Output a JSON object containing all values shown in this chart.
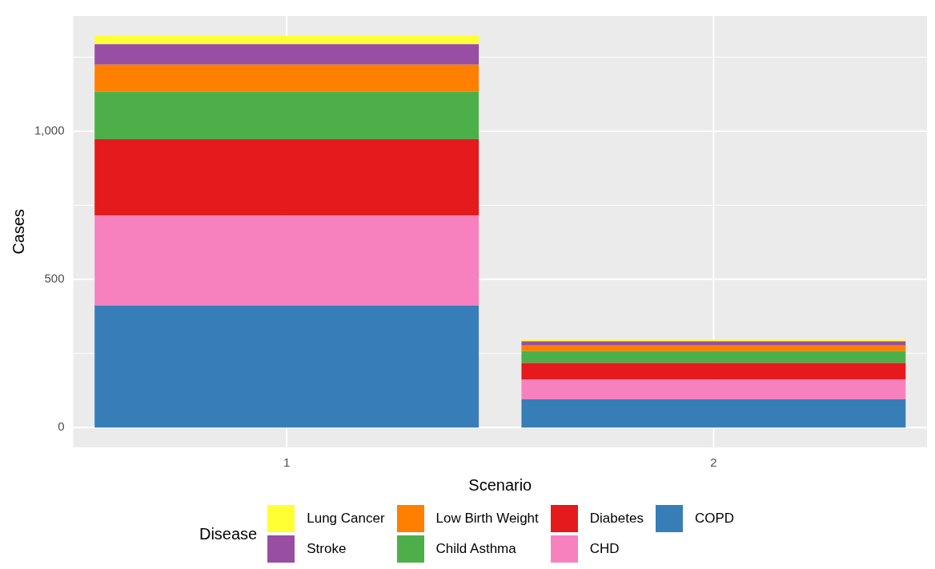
{
  "chart_data": {
    "type": "bar",
    "stacked": true,
    "xlabel": "Scenario",
    "ylabel": "Cases",
    "legend_title": "Disease",
    "legend": "bottom",
    "grid": true,
    "categories": [
      "1",
      "2"
    ],
    "ylim": [
      -67,
      1389
    ],
    "yticks": [
      0,
      {
        "value": 250,
        "label": null
      },
      {
        "value": 500,
        "label": "500"
      },
      {
        "value": 750,
        "label": null
      },
      {
        "value": 1000,
        "label": "1,000"
      },
      {
        "value": 1250,
        "label": null
      }
    ],
    "series": [
      {
        "name": "COPD",
        "color": "#377eb8",
        "values": [
          412,
          95
        ]
      },
      {
        "name": "CHD",
        "color": "#f781bf",
        "values": [
          303,
          66
        ]
      },
      {
        "name": "Diabetes",
        "color": "#e41a1c",
        "values": [
          258,
          57
        ]
      },
      {
        "name": "Child Asthma",
        "color": "#4daf4a",
        "values": [
          160,
          40
        ]
      },
      {
        "name": "Low Birth Weight",
        "color": "#ff7f00",
        "values": [
          92,
          19
        ]
      },
      {
        "name": "Stroke",
        "color": "#984ea3",
        "values": [
          69,
          14
        ]
      },
      {
        "name": "Lung Cancer",
        "color": "#ffff33",
        "values": [
          28,
          6
        ]
      }
    ]
  }
}
